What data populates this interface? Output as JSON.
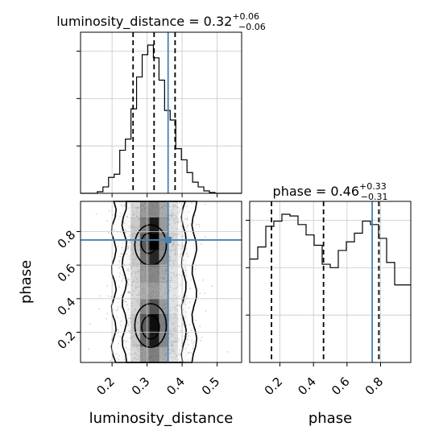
{
  "chart_data": [
    {
      "panel": "histogram",
      "type": "bar",
      "parameter": "luminosity_distance",
      "title": {
        "prefix": "luminosity_distance = 0.32",
        "upper": "+0.06",
        "lower": "−0.06"
      },
      "xlim": [
        0.11,
        0.57
      ],
      "xticks": [
        0.2,
        0.3,
        0.4,
        0.5
      ],
      "bin_edges": [
        0.11,
        0.126,
        0.142,
        0.158,
        0.174,
        0.19,
        0.206,
        0.222,
        0.238,
        0.254,
        0.27,
        0.286,
        0.302,
        0.318,
        0.334,
        0.35,
        0.366,
        0.382,
        0.398,
        0.414,
        0.43,
        0.446,
        0.462,
        0.478,
        0.494,
        0.51,
        0.57
      ],
      "counts": [
        0,
        0,
        0,
        0.01,
        0.04,
        0.1,
        0.12,
        0.27,
        0.34,
        0.53,
        0.73,
        0.87,
        0.93,
        0.85,
        0.71,
        0.52,
        0.46,
        0.28,
        0.21,
        0.13,
        0.07,
        0.04,
        0.015,
        0.005,
        0,
        0
      ],
      "quantiles": [
        0.26,
        0.32,
        0.38
      ],
      "truth": 0.36,
      "yticks_unlabeled": 3
    },
    {
      "panel": "2d_density",
      "type": "heatmap",
      "x_parameter": "luminosity_distance",
      "y_parameter": "phase",
      "xlim": [
        0.11,
        0.57
      ],
      "ylim": [
        0.02,
        0.98
      ],
      "xticks": [
        0.2,
        0.3,
        0.4,
        0.5
      ],
      "yticks": [
        0.2,
        0.4,
        0.6,
        0.8
      ],
      "truth": {
        "x": 0.36,
        "y": 0.75
      },
      "density_grid": [
        [
          0.05,
          0.12,
          0.35,
          0.55,
          0.6,
          0.5,
          0.3,
          0.12,
          0.05
        ],
        [
          0.05,
          0.15,
          0.4,
          0.62,
          0.9,
          0.55,
          0.32,
          0.14,
          0.05
        ],
        [
          0.05,
          0.15,
          0.42,
          0.7,
          1.0,
          0.6,
          0.35,
          0.15,
          0.05
        ],
        [
          0.05,
          0.14,
          0.4,
          0.66,
          0.85,
          0.58,
          0.33,
          0.14,
          0.05
        ],
        [
          0.04,
          0.12,
          0.35,
          0.55,
          0.6,
          0.5,
          0.3,
          0.12,
          0.04
        ],
        [
          0.04,
          0.12,
          0.33,
          0.5,
          0.55,
          0.46,
          0.28,
          0.12,
          0.04
        ],
        [
          0.04,
          0.13,
          0.36,
          0.6,
          0.72,
          0.55,
          0.3,
          0.13,
          0.04
        ],
        [
          0.05,
          0.15,
          0.42,
          0.7,
          0.95,
          0.62,
          0.34,
          0.15,
          0.05
        ],
        [
          0.05,
          0.14,
          0.4,
          0.68,
          0.9,
          0.6,
          0.33,
          0.14,
          0.05
        ],
        [
          0.05,
          0.12,
          0.34,
          0.55,
          0.62,
          0.5,
          0.3,
          0.12,
          0.05
        ]
      ],
      "contour_levels": 4
    },
    {
      "panel": "histogram",
      "type": "bar",
      "parameter": "phase",
      "title": {
        "prefix": "phase = 0.46",
        "upper": "+0.33",
        "lower": "−0.31"
      },
      "xlim": [
        0.02,
        0.98
      ],
      "xticks": [
        0.2,
        0.4,
        0.6,
        0.8
      ],
      "bin_edges": [
        0.02,
        0.068,
        0.116,
        0.164,
        0.212,
        0.26,
        0.308,
        0.356,
        0.404,
        0.452,
        0.5,
        0.548,
        0.596,
        0.644,
        0.692,
        0.74,
        0.788,
        0.836,
        0.884,
        0.98
      ],
      "counts": [
        0.6,
        0.67,
        0.79,
        0.82,
        0.86,
        0.85,
        0.8,
        0.74,
        0.68,
        0.57,
        0.55,
        0.65,
        0.7,
        0.75,
        0.82,
        0.8,
        0.72,
        0.58,
        0.45
      ],
      "quantiles": [
        0.15,
        0.46,
        0.79
      ],
      "truth": 0.75,
      "yticks_unlabeled": 3
    }
  ],
  "axis_labels": {
    "x1": "luminosity_distance",
    "x2": "phase",
    "y": "phase"
  },
  "colors": {
    "truth": "#4682b4",
    "hist": "#000000",
    "grid": "#c8c8c8",
    "axes": "#000000"
  }
}
